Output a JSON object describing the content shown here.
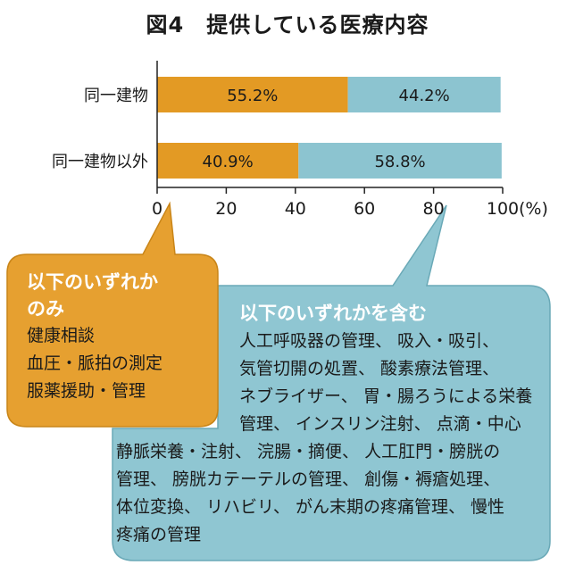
{
  "colors": {
    "orange": "#e39a24",
    "teal": "#8cc4d0",
    "orange_box": "#e6a030",
    "teal_box": "#8fc6d2"
  },
  "chart_data": {
    "type": "bar",
    "orientation": "horizontal",
    "stacked": true,
    "title": "図4　提供している医療内容",
    "categories": [
      "同一建物",
      "同一建物以外"
    ],
    "series": [
      {
        "values": [
          55.2,
          40.9
        ],
        "labels": [
          "55.2%",
          "40.9%"
        ],
        "color": "#e39a24"
      },
      {
        "values": [
          44.2,
          58.8
        ],
        "labels": [
          "44.2%",
          "58.8%"
        ],
        "color": "#8cc4d0"
      }
    ],
    "x_ticks": [
      "0",
      "20",
      "40",
      "60",
      "80",
      "100"
    ],
    "xlim": [
      0,
      100
    ],
    "x_unit": "(%)"
  },
  "callouts": {
    "only": {
      "title": [
        "以下のいずれか",
        "のみ"
      ],
      "items": [
        "健康相談",
        "血圧・脈拍の測定",
        "服薬援助・管理"
      ]
    },
    "includes": {
      "title": "以下のいずれかを含む",
      "lines": [
        "人工呼吸器の管理、 吸入・吸引、",
        "気管切開の処置、 酸素療法管理、",
        "ネブライザー、 胃・腸ろうによる栄養",
        "管理、 インスリン注射、 点滴・中心",
        "静脈栄養・注射、 浣腸・摘便、 人工肛門・膀胱の",
        "管理、 膀胱カテーテルの管理、 創傷・褥瘡処理、",
        "体位変換、 リハビリ、 がん末期の疼痛管理、 慢性",
        "疼痛の管理"
      ]
    }
  }
}
